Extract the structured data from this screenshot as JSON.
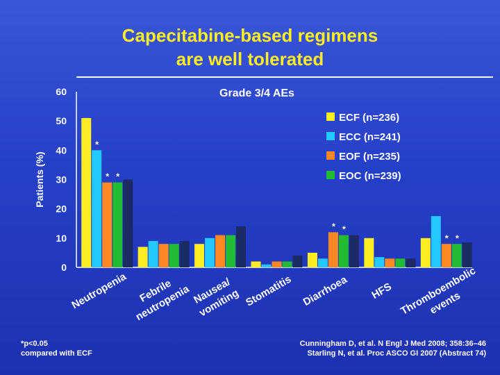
{
  "slide": {
    "title_line1": "Capecitabine-based regimens",
    "title_line2": "are well tolerated",
    "footnote_line1": "*p<0.05",
    "footnote_line2": "compared with ECF",
    "reference_line1": "Cunningham D, et al. N Engl J Med 2008; 358:36–46",
    "reference_line2": "Starling N, et al. Proc ASCO GI 2007 (Abstract 74)"
  },
  "colors": {
    "title": "#ffee22",
    "ECF": "#ffee22",
    "ECC": "#22c8ff",
    "EOF": "#ff8822",
    "EOC": "#22bb33",
    "dark_bar": "#1c2a66",
    "asterisk": "#ffffff"
  },
  "chart_data": {
    "type": "bar",
    "title": "Grade 3/4 AEs",
    "xlabel": "",
    "ylabel": "Patients (%)",
    "ylim": [
      0,
      60
    ],
    "yticks": [
      0,
      10,
      20,
      30,
      40,
      50,
      60
    ],
    "categories": [
      [
        "Neutropenia"
      ],
      [
        "Febrile",
        "neutropenia"
      ],
      [
        "Nausea/",
        "vomiting"
      ],
      [
        "Stomatitis"
      ],
      [
        "Diarrhoea"
      ],
      [
        "HFS"
      ],
      [
        "Thromboembolic",
        "events"
      ]
    ],
    "series": [
      {
        "name": "ECF (n=236)",
        "color_key": "ECF",
        "values": [
          51,
          7,
          8,
          2,
          5,
          10,
          10
        ]
      },
      {
        "name": "ECC (n=241)",
        "color_key": "ECC",
        "values": [
          40,
          9,
          10,
          1,
          3,
          3.5,
          17.5
        ]
      },
      {
        "name": "EOF (n=235)",
        "color_key": "EOF",
        "values": [
          29,
          8,
          11,
          2,
          12,
          3,
          8
        ]
      },
      {
        "name": "EOC (n=239)",
        "color_key": "EOC",
        "values": [
          29,
          8,
          11,
          2,
          11,
          3,
          8
        ]
      }
    ],
    "shadow_series": [
      {
        "values": [
          30,
          9,
          14,
          4,
          11,
          3,
          8.5
        ]
      }
    ],
    "significance_markers": [
      {
        "category": 0,
        "series": 1,
        "label": "*"
      },
      {
        "category": 0,
        "series": 2,
        "label": "*"
      },
      {
        "category": 0,
        "series": 3,
        "label": "*"
      },
      {
        "category": 4,
        "series": 2,
        "label": "*"
      },
      {
        "category": 4,
        "series": 3,
        "label": "*"
      },
      {
        "category": 6,
        "series": 2,
        "label": "*"
      },
      {
        "category": 6,
        "series": 3,
        "label": "*"
      }
    ],
    "legend_position": "top-right",
    "grid": false
  }
}
